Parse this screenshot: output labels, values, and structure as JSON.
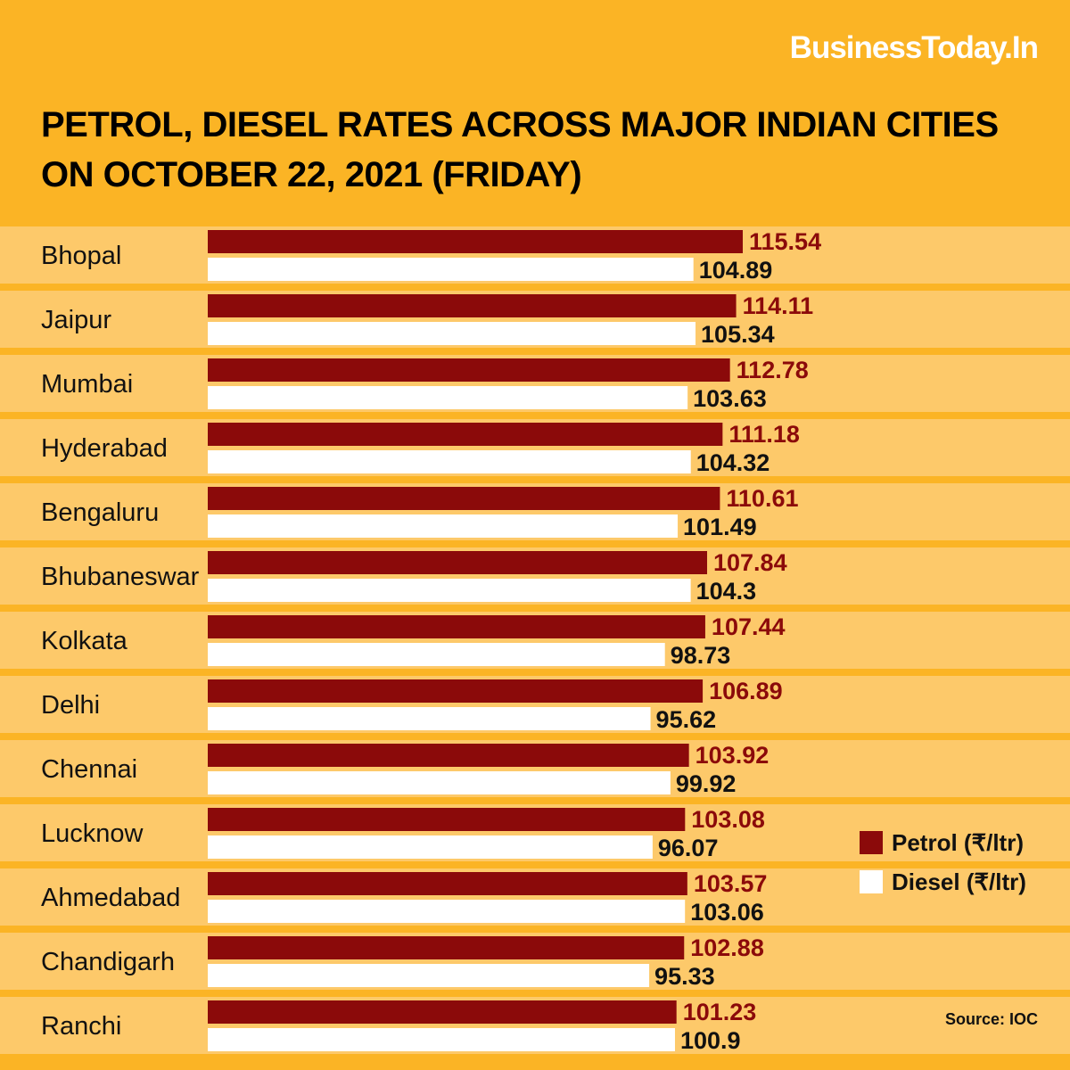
{
  "brand": "BusinessToday.In",
  "title": "PETROL, DIESEL RATES ACROSS MAJOR INDIAN CITIES ON OCTOBER 22, 2021 (FRIDAY)",
  "source": "Source: IOC",
  "colors": {
    "background": "#fbb425",
    "row_band": "#fdc96a",
    "petrol": "#8b0a0a",
    "diesel": "#ffffff"
  },
  "legend": {
    "petrol": "Petrol (₹/ltr)",
    "diesel": "Diesel (₹/ltr)"
  },
  "chart_data": {
    "type": "bar",
    "orientation": "horizontal",
    "categories": [
      "Bhopal",
      "Jaipur",
      "Mumbai",
      "Hyderabad",
      "Bengaluru",
      "Bhubaneswar",
      "Kolkata",
      "Delhi",
      "Chennai",
      "Lucknow",
      "Ahmedabad",
      "Chandigarh",
      "Ranchi"
    ],
    "series": [
      {
        "name": "Petrol (₹/ltr)",
        "values": [
          115.54,
          114.11,
          112.78,
          111.18,
          110.61,
          107.84,
          107.44,
          106.89,
          103.92,
          103.08,
          103.57,
          102.88,
          101.23
        ],
        "labels": [
          "115.54",
          "114.11",
          "112.78",
          "111.18",
          "110.61",
          "107.84",
          "107.44",
          "106.89",
          "103.92",
          "103.08",
          "103.57",
          "102.88",
          "101.23"
        ]
      },
      {
        "name": "Diesel (₹/ltr)",
        "values": [
          104.89,
          105.34,
          103.63,
          104.32,
          101.49,
          104.3,
          98.73,
          95.62,
          99.92,
          96.07,
          103.06,
          95.33,
          100.9
        ],
        "labels": [
          "104.89",
          "105.34",
          "103.63",
          "104.32",
          "101.49",
          "104.3",
          "98.73",
          "95.62",
          "99.92",
          "96.07",
          "103.06",
          "95.33",
          "100.9"
        ]
      }
    ],
    "title": "PETROL, DIESEL RATES ACROSS MAJOR INDIAN CITIES ON OCTOBER 22, 2021 (FRIDAY)",
    "xlabel": "",
    "ylabel": "",
    "legend_position": "right",
    "grid": false
  }
}
